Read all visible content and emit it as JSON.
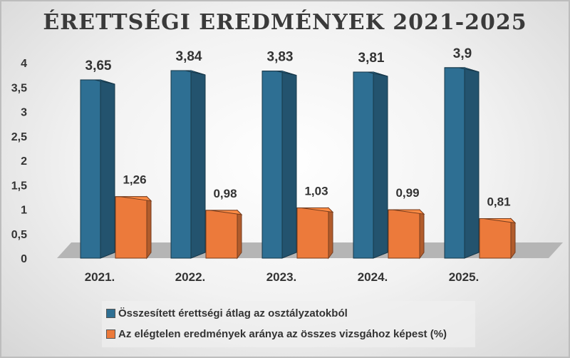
{
  "chart_data": {
    "type": "bar",
    "title": "ÉRETTSÉGI EREDMÉNYEK 2021-2025",
    "categories": [
      "2021.",
      "2022.",
      "2023.",
      "2024.",
      "2025."
    ],
    "series": [
      {
        "name": "Összesített érettségi átlag az osztályzatokból",
        "values": [
          3.65,
          3.84,
          3.83,
          3.81,
          3.9
        ],
        "labels": [
          "3,65",
          "3,84",
          "3,83",
          "3,81",
          "3,9"
        ],
        "color": "#2e6f93"
      },
      {
        "name": "Az elégtelen eredmények aránya az összes vizsgához képest (%)",
        "values": [
          1.26,
          0.98,
          1.03,
          0.99,
          0.81
        ],
        "labels": [
          "1,26",
          "0,98",
          "1,03",
          "0,99",
          "0,81"
        ],
        "color": "#ec7a3b"
      }
    ],
    "ylim": [
      0,
      4
    ],
    "yticks": [
      "0",
      "0,5",
      "1",
      "1,5",
      "2",
      "2,5",
      "3",
      "3,5",
      "4"
    ],
    "legend": "bottom",
    "grid": false
  }
}
